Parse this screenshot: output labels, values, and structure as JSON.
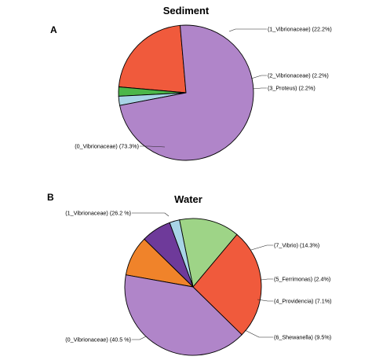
{
  "chart_data": [
    {
      "type": "pie",
      "panel": "A",
      "title": "Sediment",
      "slices": [
        {
          "label": "(1_Vibrionaceae) (22.2%)",
          "value": 22.2,
          "color": "#f05a3c"
        },
        {
          "label": "(2_Vibrionaceae) (2.2%)",
          "value": 2.2,
          "color": "#4cb749"
        },
        {
          "label": "(3_Proteus) (2.2%)",
          "value": 2.2,
          "color": "#a8d4e6"
        },
        {
          "label": "(0_Vibrionaceae) (73.3%)",
          "value": 73.3,
          "color": "#b085c9"
        }
      ]
    },
    {
      "type": "pie",
      "panel": "B",
      "title": "Water",
      "slices": [
        {
          "label": "(7_Vibrio) (14.3%)",
          "value": 14.3,
          "color": "#9ed487"
        },
        {
          "label": "(5_Ferrimonas) (2.4%)",
          "value": 2.4,
          "color": "#a8d4e6"
        },
        {
          "label": "(4_Providencia) (7.1%)",
          "value": 7.1,
          "color": "#6e3a9a"
        },
        {
          "label": "(6_Shewanella) (9.5%)",
          "value": 9.5,
          "color": "#f0832a"
        },
        {
          "label": "(0_Vibrionaceae) (40.5 %)",
          "value": 40.5,
          "color": "#b085c9"
        },
        {
          "label": "(1_Vibrionaceae) (26.2 %)",
          "value": 26.2,
          "color": "#f05a3c"
        }
      ]
    }
  ]
}
